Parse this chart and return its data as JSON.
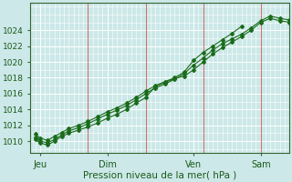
{
  "xlabel": "Pression niveau de la mer( hPa )",
  "bg_color": "#cce8e8",
  "grid_color": "#ffffff",
  "line_color": "#1a6b1a",
  "axis_color": "#336633",
  "tick_label_color": "#1a5a1a",
  "xlim": [
    0,
    108
  ],
  "ylim": [
    1008.5,
    1027.5
  ],
  "yticks": [
    1010,
    1012,
    1014,
    1016,
    1018,
    1020,
    1022,
    1024
  ],
  "xtick_positions": [
    4,
    32,
    68,
    96
  ],
  "xtick_labels": [
    "Jeu",
    "Dim",
    "Ven",
    "Sam"
  ],
  "vlines": [
    0,
    24,
    48,
    72,
    96,
    108
  ],
  "series1_x": [
    2,
    4,
    7,
    10,
    13,
    16,
    20,
    24,
    28,
    32,
    36,
    40,
    44,
    48,
    52,
    56,
    60,
    64,
    68,
    72,
    76,
    80,
    84,
    88,
    92,
    96,
    100,
    104,
    108
  ],
  "series1_y": [
    1010.5,
    1010.0,
    1009.8,
    1010.2,
    1010.8,
    1011.3,
    1011.7,
    1012.2,
    1012.8,
    1013.4,
    1013.9,
    1014.5,
    1015.2,
    1016.0,
    1016.7,
    1017.2,
    1017.8,
    1018.5,
    1019.6,
    1020.5,
    1021.5,
    1022.3,
    1022.9,
    1023.5,
    1024.3,
    1025.2,
    1025.8,
    1025.5,
    1025.3
  ],
  "series2_x": [
    2,
    4,
    7,
    10,
    13,
    16,
    20,
    24,
    28,
    32,
    36,
    40,
    44,
    48,
    52,
    56,
    60,
    64,
    68,
    72,
    76,
    80,
    84,
    88,
    92,
    96,
    100,
    104,
    108
  ],
  "series2_y": [
    1010.2,
    1009.8,
    1009.5,
    1010.0,
    1010.6,
    1011.0,
    1011.4,
    1011.8,
    1012.3,
    1012.9,
    1013.4,
    1014.0,
    1014.8,
    1015.5,
    1016.9,
    1017.4,
    1017.9,
    1018.2,
    1019.0,
    1020.0,
    1021.0,
    1021.8,
    1022.5,
    1023.2,
    1024.0,
    1025.0,
    1025.5,
    1025.2,
    1025.0
  ],
  "series3_x": [
    2,
    4,
    7,
    10,
    13,
    16,
    20,
    24,
    28,
    32,
    36,
    40,
    44,
    48,
    52,
    56,
    60,
    64,
    68,
    72,
    76,
    80,
    84,
    88
  ],
  "series3_y": [
    1010.9,
    1010.4,
    1010.1,
    1010.6,
    1011.1,
    1011.6,
    1012.0,
    1012.5,
    1013.1,
    1013.7,
    1014.2,
    1014.8,
    1015.5,
    1016.3,
    1017.0,
    1017.5,
    1018.0,
    1018.7,
    1020.2,
    1021.2,
    1022.0,
    1022.8,
    1023.6,
    1024.5
  ]
}
